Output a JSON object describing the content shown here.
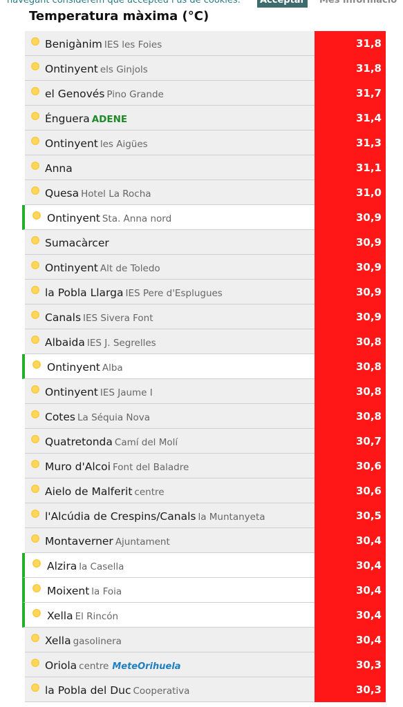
{
  "cookie_bar": {
    "message": "navegant considerem que accepteu l'ús de cookies.",
    "accept": "Acceptar",
    "more": "Més informació"
  },
  "title": "Temperatura màxima (°C)",
  "rows": [
    {
      "name": "Benigànim",
      "sub": "IES les Foies",
      "value": "31,8"
    },
    {
      "name": "Ontinyent",
      "sub": "els Ginjols",
      "value": "31,8"
    },
    {
      "name": "el Genovés",
      "sub": "Pino Grande",
      "value": "31,7"
    },
    {
      "name": "Énguera",
      "sub": "ADENE",
      "sub_emphasis": true,
      "value": "31,4"
    },
    {
      "name": "Ontinyent",
      "sub": "les Aigües",
      "value": "31,3"
    },
    {
      "name": "Anna",
      "value": "31,1"
    },
    {
      "name": "Quesa",
      "sub": "Hotel La Rocha",
      "value": "31,0"
    },
    {
      "name": "Ontinyent",
      "sub": "Sta. Anna nord",
      "value": "30,9",
      "highlight": true
    },
    {
      "name": "Sumacàrcer",
      "value": "30,9"
    },
    {
      "name": "Ontinyent",
      "sub": "Alt de Toledo",
      "value": "30,9"
    },
    {
      "name": "la Pobla Llarga",
      "sub": "IES Pere d'Esplugues",
      "value": "30,9"
    },
    {
      "name": "Canals",
      "sub": "IES Sivera Font",
      "value": "30,9"
    },
    {
      "name": "Albaida",
      "sub": "IES J. Segrelles",
      "value": "30,8"
    },
    {
      "name": "Ontinyent",
      "sub": "Alba",
      "value": "30,8",
      "highlight": true
    },
    {
      "name": "Ontinyent",
      "sub": "IES Jaume I",
      "value": "30,8"
    },
    {
      "name": "Cotes",
      "sub": "La Séquia Nova",
      "value": "30,8"
    },
    {
      "name": "Quatretonda",
      "sub": "Camí del Molí",
      "value": "30,7"
    },
    {
      "name": "Muro d'Alcoi",
      "sub": "Font del Baladre",
      "value": "30,6"
    },
    {
      "name": "Aielo de Malferit",
      "sub": "centre",
      "value": "30,6"
    },
    {
      "name": "l'Alcúdia de Crespins/Canals",
      "sub": "la Muntanyeta",
      "value": "30,5"
    },
    {
      "name": "Montaverner",
      "sub": "Ajuntament",
      "value": "30,4"
    },
    {
      "name": "Alzira",
      "sub": "la Casella",
      "value": "30,4",
      "highlight": true
    },
    {
      "name": "Moixent",
      "sub": "la Foia",
      "value": "30,4",
      "highlight": true
    },
    {
      "name": "Xella",
      "sub": "El Rincón",
      "value": "30,4",
      "highlight": true
    },
    {
      "name": "Xella",
      "sub": "gasolinera",
      "value": "30,4"
    },
    {
      "name": "Oriola",
      "sub": "centre",
      "logo": "MeteOrihuela",
      "value": "30,3"
    },
    {
      "name": "la Pobla del Duc",
      "sub": "Cooperativa",
      "value": "30,3"
    }
  ]
}
